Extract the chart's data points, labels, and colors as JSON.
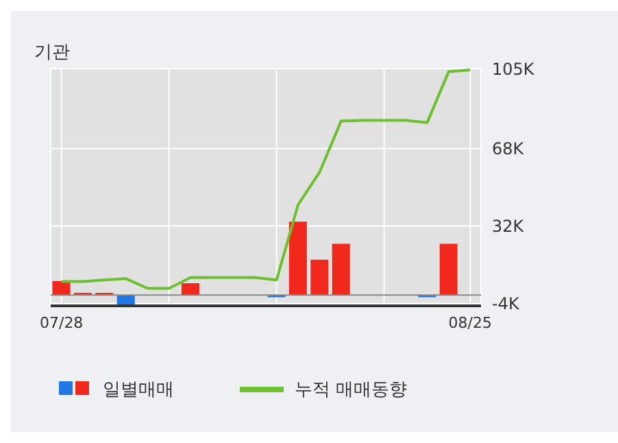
{
  "chart_data": {
    "type": "bar",
    "title": "기관",
    "categories": [
      "07/28",
      null,
      null,
      null,
      null,
      null,
      null,
      null,
      null,
      null,
      null,
      null,
      null,
      null,
      null,
      null,
      null,
      null,
      null,
      "08/25"
    ],
    "series": [
      {
        "name": "일별매매",
        "colors": [
          "#f0291c",
          "#f0291c",
          "#f0291c",
          "#1e78e6",
          "#f0291c",
          "#f0291c",
          "#f0291c",
          "#f0291c",
          "#f0291c",
          "#f0291c",
          "#1e78e6",
          "#f0291c",
          "#f0291c",
          "#f0291c",
          "#f0291c",
          "#f0291c",
          "#f0291c",
          "#1e78e6",
          "#f0291c",
          "#f0291c"
        ],
        "values": [
          6500,
          1000,
          1000,
          -5000,
          0,
          0,
          5500,
          0,
          0,
          0,
          -1000,
          34000,
          16400,
          23800,
          0,
          0,
          0,
          -1000,
          23800,
          0
        ]
      },
      {
        "name": "누적 매매동향",
        "type": "line",
        "color": "#6cbf2d",
        "values": [
          6300,
          6300,
          7000,
          7600,
          3100,
          3100,
          8100,
          8100,
          8100,
          8100,
          7000,
          41900,
          57000,
          80700,
          81000,
          81000,
          81000,
          80000,
          103600,
          104400
        ]
      }
    ],
    "ylim": [
      -5000,
      105000
    ],
    "yticks": [
      {
        "value": -4000,
        "label": "-4K"
      },
      {
        "value": 32000,
        "label": "32K"
      },
      {
        "value": 68000,
        "label": "68K"
      },
      {
        "value": 105000,
        "label": "105K"
      }
    ],
    "grid": true,
    "legend": "bottom",
    "marker": "none"
  }
}
